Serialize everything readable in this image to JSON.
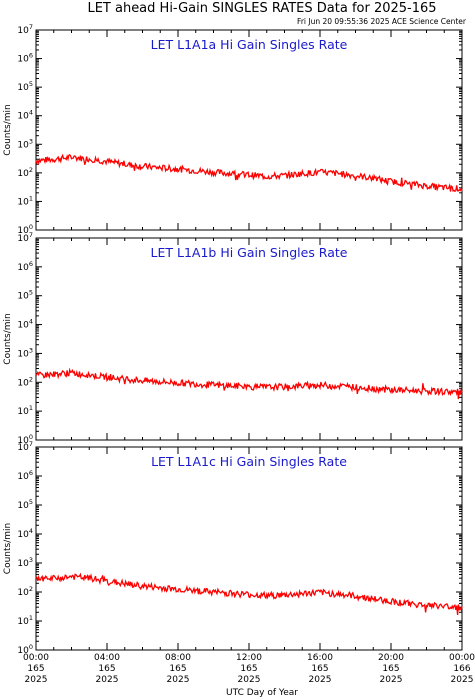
{
  "title": "LET ahead Hi-Gain SINGLES RATES Data for 2025-165",
  "timestamp": "Fri Jun 20 09:55:36 2025 ACE Science Center",
  "chart_data": [
    {
      "type": "line",
      "title": "LET L1A1a Hi Gain Singles Rate",
      "ylabel": "Counts/min",
      "yscale": "log",
      "ylim": [
        1,
        10000000
      ],
      "y_tick_exponents": [
        0,
        1,
        2,
        3,
        4,
        5,
        6,
        7
      ],
      "xlim": [
        0,
        24
      ],
      "series": [
        {
          "color": "#ff0000",
          "x": [
            0,
            1,
            2,
            3,
            4,
            5,
            6,
            7,
            8,
            9,
            10,
            11,
            12,
            13,
            14,
            15,
            16,
            17,
            18,
            19,
            20,
            21,
            22,
            23,
            24
          ],
          "values": [
            270,
            300,
            350,
            310,
            250,
            200,
            170,
            150,
            135,
            120,
            105,
            95,
            85,
            75,
            80,
            95,
            105,
            95,
            80,
            65,
            50,
            42,
            35,
            30,
            28
          ]
        }
      ]
    },
    {
      "type": "line",
      "title": "LET L1A1b Hi Gain Singles Rate",
      "ylabel": "Counts/min",
      "yscale": "log",
      "ylim": [
        1,
        10000000
      ],
      "y_tick_exponents": [
        0,
        1,
        2,
        3,
        4,
        5,
        6,
        7
      ],
      "xlim": [
        0,
        24
      ],
      "series": [
        {
          "color": "#ff0000",
          "x": [
            0,
            1,
            2,
            3,
            4,
            5,
            6,
            7,
            8,
            9,
            10,
            11,
            12,
            13,
            14,
            15,
            16,
            17,
            18,
            19,
            20,
            21,
            22,
            23,
            24
          ],
          "values": [
            170,
            190,
            210,
            180,
            150,
            130,
            115,
            105,
            95,
            88,
            80,
            75,
            70,
            67,
            70,
            75,
            80,
            75,
            68,
            60,
            55,
            52,
            50,
            48,
            45
          ]
        }
      ]
    },
    {
      "type": "line",
      "title": "LET L1A1c Hi Gain Singles Rate",
      "ylabel": "Counts/min",
      "yscale": "log",
      "ylim": [
        1,
        10000000
      ],
      "y_tick_exponents": [
        0,
        1,
        2,
        3,
        4,
        5,
        6,
        7
      ],
      "xlim": [
        0,
        24
      ],
      "series": [
        {
          "color": "#ff0000",
          "x": [
            0,
            1,
            2,
            3,
            4,
            5,
            6,
            7,
            8,
            9,
            10,
            11,
            12,
            13,
            14,
            15,
            16,
            17,
            18,
            19,
            20,
            21,
            22,
            23,
            24
          ],
          "values": [
            260,
            290,
            340,
            300,
            240,
            190,
            160,
            140,
            125,
            110,
            100,
            90,
            82,
            75,
            78,
            88,
            95,
            85,
            72,
            58,
            48,
            40,
            35,
            32,
            30
          ]
        }
      ]
    }
  ],
  "x_axis": {
    "xlabel": "UTC Day of Year",
    "ticks": [
      {
        "hour": 0,
        "time": "00:00",
        "day": "165",
        "year": "2025"
      },
      {
        "hour": 4,
        "time": "04:00",
        "day": "165",
        "year": "2025"
      },
      {
        "hour": 8,
        "time": "08:00",
        "day": "165",
        "year": "2025"
      },
      {
        "hour": 12,
        "time": "12:00",
        "day": "165",
        "year": "2025"
      },
      {
        "hour": 16,
        "time": "16:00",
        "day": "165",
        "year": "2025"
      },
      {
        "hour": 20,
        "time": "20:00",
        "day": "165",
        "year": "2025"
      },
      {
        "hour": 24,
        "time": "00:00",
        "day": "166",
        "year": "2025"
      }
    ]
  }
}
